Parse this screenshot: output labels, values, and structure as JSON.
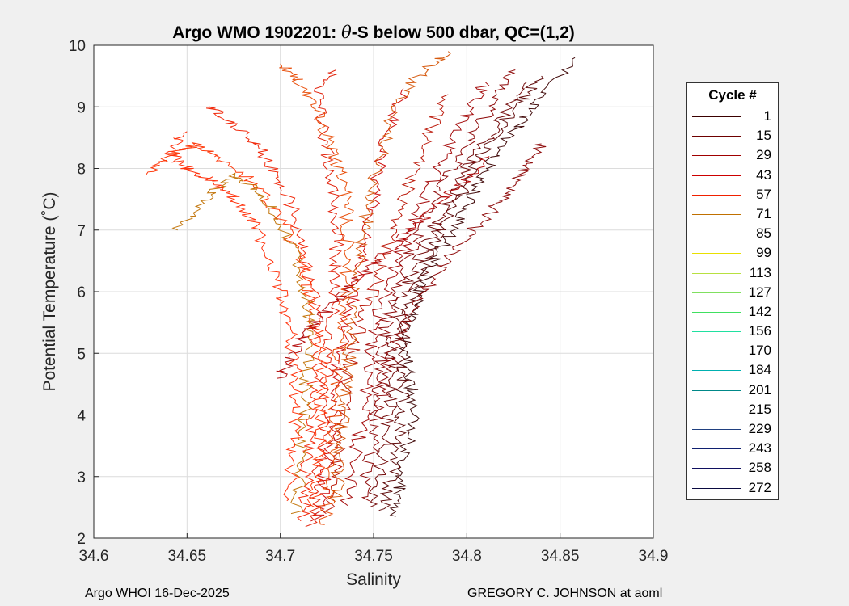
{
  "header": {
    "title_prefix": "Argo WMO 1902201: ",
    "title_theta": "θ",
    "title_suffix": "-S below 500 dbar,  QC=(1,2)"
  },
  "footer": {
    "left": "Argo WHOI 16-Dec-2025",
    "right": "GREGORY C. JOHNSON at aoml"
  },
  "chart_data": {
    "type": "line",
    "xlabel": "Salinity",
    "ylabel": "Potential Temperature (˚C)",
    "xlim": [
      34.6,
      34.9
    ],
    "ylim": [
      2,
      10
    ],
    "x_ticks": [
      "34.6",
      "34.65",
      "34.7",
      "34.75",
      "34.8",
      "34.85",
      "34.9"
    ],
    "y_ticks": [
      "2",
      "3",
      "4",
      "5",
      "6",
      "7",
      "8",
      "9",
      "10"
    ],
    "grid": true,
    "legend": {
      "title": "Cycle #",
      "position": "right-outside",
      "entries": [
        {
          "label": "1",
          "color": "#3a0000"
        },
        {
          "label": "15",
          "color": "#6e0000"
        },
        {
          "label": "29",
          "color": "#a00000"
        },
        {
          "label": "43",
          "color": "#cc0000"
        },
        {
          "label": "57",
          "color": "#f02000"
        },
        {
          "label": "71",
          "color": "#c07000"
        },
        {
          "label": "85",
          "color": "#d4a800"
        },
        {
          "label": "99",
          "color": "#e8e000"
        },
        {
          "label": "113",
          "color": "#b8e040"
        },
        {
          "label": "127",
          "color": "#80e060"
        },
        {
          "label": "142",
          "color": "#40e060"
        },
        {
          "label": "156",
          "color": "#20e0a0"
        },
        {
          "label": "170",
          "color": "#20d0c8"
        },
        {
          "label": "184",
          "color": "#00b0b0"
        },
        {
          "label": "201",
          "color": "#008888"
        },
        {
          "label": "215",
          "color": "#006070"
        },
        {
          "label": "229",
          "color": "#204080"
        },
        {
          "label": "243",
          "color": "#102070"
        },
        {
          "label": "258",
          "color": "#101060"
        },
        {
          "label": "272",
          "color": "#0a0a40"
        }
      ]
    },
    "series": [
      {
        "color": "#3a0000",
        "points": [
          [
            34.762,
            2.35
          ],
          [
            34.764,
            2.9
          ],
          [
            34.768,
            3.5
          ],
          [
            34.772,
            4.1
          ],
          [
            34.77,
            4.6
          ],
          [
            34.768,
            5.1
          ],
          [
            34.77,
            5.6
          ],
          [
            34.776,
            6.1
          ],
          [
            34.784,
            6.6
          ],
          [
            34.795,
            7.1
          ],
          [
            34.805,
            7.7
          ],
          [
            34.815,
            8.2
          ],
          [
            34.828,
            8.7
          ],
          [
            34.842,
            9.2
          ],
          [
            34.858,
            9.8
          ]
        ]
      },
      {
        "color": "#5a0000",
        "points": [
          [
            34.756,
            2.45
          ],
          [
            34.76,
            3.0
          ],
          [
            34.764,
            3.6
          ],
          [
            34.766,
            4.2
          ],
          [
            34.764,
            4.8
          ],
          [
            34.766,
            5.4
          ],
          [
            34.772,
            6.0
          ],
          [
            34.78,
            6.6
          ],
          [
            34.79,
            7.2
          ],
          [
            34.8,
            7.8
          ],
          [
            34.812,
            8.4
          ],
          [
            34.826,
            9.0
          ],
          [
            34.84,
            9.5
          ]
        ]
      },
      {
        "color": "#6e0000",
        "points": [
          [
            34.75,
            2.5
          ],
          [
            34.754,
            3.2
          ],
          [
            34.758,
            3.9
          ],
          [
            34.76,
            4.5
          ],
          [
            34.76,
            5.2
          ],
          [
            34.764,
            5.8
          ],
          [
            34.772,
            6.4
          ],
          [
            34.782,
            7.0
          ],
          [
            34.792,
            7.6
          ],
          [
            34.804,
            8.2
          ],
          [
            34.818,
            8.8
          ],
          [
            34.832,
            9.4
          ]
        ]
      },
      {
        "color": "#8a0000",
        "points": [
          [
            34.744,
            2.6
          ],
          [
            34.748,
            3.3
          ],
          [
            34.752,
            4.0
          ],
          [
            34.754,
            4.7
          ],
          [
            34.756,
            5.4
          ],
          [
            34.762,
            6.0
          ],
          [
            34.77,
            6.7
          ],
          [
            34.78,
            7.3
          ],
          [
            34.79,
            7.9
          ],
          [
            34.802,
            8.5
          ],
          [
            34.815,
            9.1
          ],
          [
            34.826,
            9.6
          ]
        ]
      },
      {
        "color": "#a00000",
        "points": [
          [
            34.735,
            2.55
          ],
          [
            34.74,
            3.3
          ],
          [
            34.745,
            4.1
          ],
          [
            34.748,
            4.9
          ],
          [
            34.752,
            5.6
          ],
          [
            34.76,
            6.3
          ],
          [
            34.77,
            7.0
          ],
          [
            34.78,
            7.7
          ],
          [
            34.79,
            8.3
          ],
          [
            34.8,
            8.9
          ],
          [
            34.81,
            9.4
          ]
        ]
      },
      {
        "color": "#b81000",
        "points": [
          [
            34.726,
            2.4
          ],
          [
            34.73,
            3.1
          ],
          [
            34.734,
            3.8
          ],
          [
            34.736,
            4.5
          ],
          [
            34.74,
            5.2
          ],
          [
            34.748,
            5.9
          ],
          [
            34.756,
            6.6
          ],
          [
            34.764,
            7.3
          ],
          [
            34.772,
            8.0
          ],
          [
            34.78,
            8.6
          ],
          [
            34.79,
            9.2
          ]
        ]
      },
      {
        "color": "#cc0000",
        "points": [
          [
            34.72,
            2.3
          ],
          [
            34.724,
            3.0
          ],
          [
            34.728,
            3.7
          ],
          [
            34.73,
            4.4
          ],
          [
            34.732,
            5.1
          ],
          [
            34.738,
            5.8
          ],
          [
            34.744,
            6.5
          ],
          [
            34.748,
            7.2
          ],
          [
            34.752,
            7.9
          ],
          [
            34.758,
            8.6
          ],
          [
            34.766,
            9.3
          ]
        ]
      },
      {
        "color": "#e01800",
        "points": [
          [
            34.716,
            2.2
          ],
          [
            34.72,
            2.9
          ],
          [
            34.723,
            3.6
          ],
          [
            34.724,
            4.3
          ],
          [
            34.726,
            5.0
          ],
          [
            34.728,
            5.7
          ],
          [
            34.73,
            6.4
          ],
          [
            34.73,
            7.1
          ],
          [
            34.728,
            7.8
          ],
          [
            34.724,
            8.5
          ],
          [
            34.72,
            9.2
          ],
          [
            34.73,
            9.6
          ]
        ]
      },
      {
        "color": "#f02000",
        "points": [
          [
            34.712,
            2.3
          ],
          [
            34.714,
            3.0
          ],
          [
            34.716,
            3.7
          ],
          [
            34.718,
            4.4
          ],
          [
            34.72,
            5.1
          ],
          [
            34.718,
            5.8
          ],
          [
            34.714,
            6.5
          ],
          [
            34.708,
            7.2
          ],
          [
            34.7,
            7.8
          ],
          [
            34.69,
            8.3
          ],
          [
            34.676,
            8.7
          ],
          [
            34.662,
            9.0
          ]
        ]
      },
      {
        "color": "#ff3000",
        "points": [
          [
            34.718,
            2.5
          ],
          [
            34.72,
            3.2
          ],
          [
            34.722,
            3.9
          ],
          [
            34.722,
            4.6
          ],
          [
            34.72,
            5.3
          ],
          [
            34.716,
            6.0
          ],
          [
            34.71,
            6.6
          ],
          [
            34.7,
            7.2
          ],
          [
            34.688,
            7.7
          ],
          [
            34.672,
            8.1
          ],
          [
            34.655,
            8.4
          ],
          [
            34.64,
            8.2
          ],
          [
            34.628,
            7.9
          ]
        ]
      },
      {
        "color": "#e84800",
        "points": [
          [
            34.724,
            2.2
          ],
          [
            34.726,
            2.9
          ],
          [
            34.728,
            3.6
          ],
          [
            34.73,
            4.3
          ],
          [
            34.732,
            5.0
          ],
          [
            34.734,
            5.7
          ],
          [
            34.736,
            6.4
          ],
          [
            34.736,
            7.1
          ],
          [
            34.734,
            7.7
          ],
          [
            34.728,
            8.3
          ],
          [
            34.72,
            8.9
          ],
          [
            34.71,
            9.4
          ],
          [
            34.7,
            9.7
          ]
        ]
      },
      {
        "color": "#c07000",
        "points": [
          [
            34.708,
            2.4
          ],
          [
            34.71,
            3.1
          ],
          [
            34.712,
            3.8
          ],
          [
            34.714,
            4.5
          ],
          [
            34.716,
            5.2
          ],
          [
            34.714,
            5.9
          ],
          [
            34.708,
            6.6
          ],
          [
            34.7,
            7.2
          ],
          [
            34.69,
            7.6
          ],
          [
            34.676,
            7.9
          ],
          [
            34.66,
            7.5
          ],
          [
            34.645,
            7.0
          ]
        ]
      },
      {
        "color": "#d45000",
        "points": [
          [
            34.73,
            2.6
          ],
          [
            34.732,
            3.3
          ],
          [
            34.734,
            4.0
          ],
          [
            34.736,
            4.7
          ],
          [
            34.738,
            5.4
          ],
          [
            34.74,
            6.1
          ],
          [
            34.744,
            6.8
          ],
          [
            34.748,
            7.5
          ],
          [
            34.754,
            8.2
          ],
          [
            34.76,
            8.9
          ],
          [
            34.774,
            9.5
          ],
          [
            34.79,
            9.9
          ]
        ]
      },
      {
        "color": "#ff2800",
        "points": [
          [
            34.705,
            2.6
          ],
          [
            34.707,
            3.3
          ],
          [
            34.709,
            4.0
          ],
          [
            34.708,
            4.7
          ],
          [
            34.705,
            5.4
          ],
          [
            34.7,
            6.0
          ],
          [
            34.694,
            6.6
          ],
          [
            34.686,
            7.1
          ],
          [
            34.676,
            7.5
          ],
          [
            34.664,
            7.8
          ],
          [
            34.65,
            8.0
          ],
          [
            34.64,
            8.3
          ],
          [
            34.65,
            8.6
          ]
        ]
      },
      {
        "color": "#8a0000",
        "points": [
          [
            34.752,
            4.0
          ],
          [
            34.756,
            4.6
          ],
          [
            34.762,
            5.2
          ],
          [
            34.772,
            5.8
          ],
          [
            34.784,
            6.3
          ],
          [
            34.796,
            6.8
          ],
          [
            34.81,
            7.2
          ],
          [
            34.822,
            7.6
          ],
          [
            34.832,
            8.0
          ],
          [
            34.84,
            8.4
          ]
        ]
      },
      {
        "color": "#b00000",
        "points": [
          [
            34.7,
            4.6
          ],
          [
            34.706,
            5.0
          ],
          [
            34.716,
            5.4
          ],
          [
            34.728,
            5.8
          ],
          [
            34.742,
            6.2
          ],
          [
            34.756,
            6.6
          ],
          [
            34.77,
            7.0
          ],
          [
            34.784,
            7.4
          ],
          [
            34.798,
            7.8
          ],
          [
            34.812,
            8.2
          ]
        ]
      }
    ]
  }
}
